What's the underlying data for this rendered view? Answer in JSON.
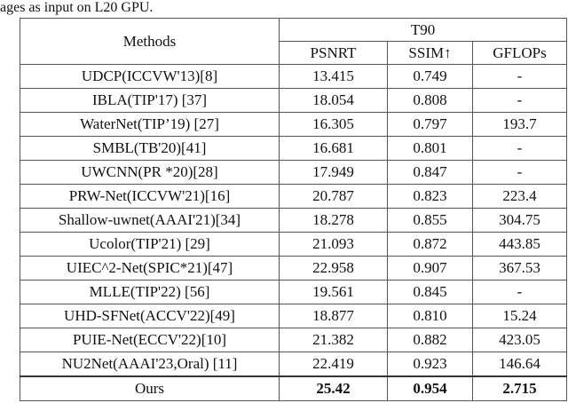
{
  "caption": "ages as input on L20 GPU.",
  "table": {
    "header": {
      "methods": "Methods",
      "group": "T90",
      "columns": [
        "PSNRT",
        "SSIM↑",
        "GFLOPs"
      ]
    },
    "rows": [
      [
        "UDCP(ICCVW'13)[8]",
        "13.415",
        "0.749",
        "-"
      ],
      [
        "IBLA(TIP'17) [37]",
        "18.054",
        "0.808",
        "-"
      ],
      [
        "WaterNet(TIP’19) [27]",
        "16.305",
        "0.797",
        "193.7"
      ],
      [
        "SMBL(TB'20)[41]",
        "16.681",
        "0.801",
        "-"
      ],
      [
        "UWCNN(PR *20)[28]",
        "17.949",
        "0.847",
        "-"
      ],
      [
        "PRW-Net(ICCVW'21)[16]",
        "20.787",
        "0.823",
        "223.4"
      ],
      [
        "Shallow-uwnet(AAAI'21)[34]",
        "18.278",
        "0.855",
        "304.75"
      ],
      [
        "Ucolor(TIP'21) [29]",
        "21.093",
        "0.872",
        "443.85"
      ],
      [
        "UIEC^2-Net(SPIC*21)[47]",
        "22.958",
        "0.907",
        "367.53"
      ],
      [
        "MLLE(TIP'22) [56]",
        "19.561",
        "0.845",
        "-"
      ],
      [
        "UHD-SFNet(ACCV'22)[49]",
        "18.877",
        "0.810",
        "15.24"
      ],
      [
        "PUIE-Net(ECCV'22)[10]",
        "21.382",
        "0.882",
        "423.05"
      ],
      [
        "NU2Net(AAAI'23,Oral) [11]",
        "22.419",
        "0.923",
        "146.64"
      ],
      [
        "Ours",
        "25.42",
        "0.954",
        "2.715"
      ]
    ]
  }
}
